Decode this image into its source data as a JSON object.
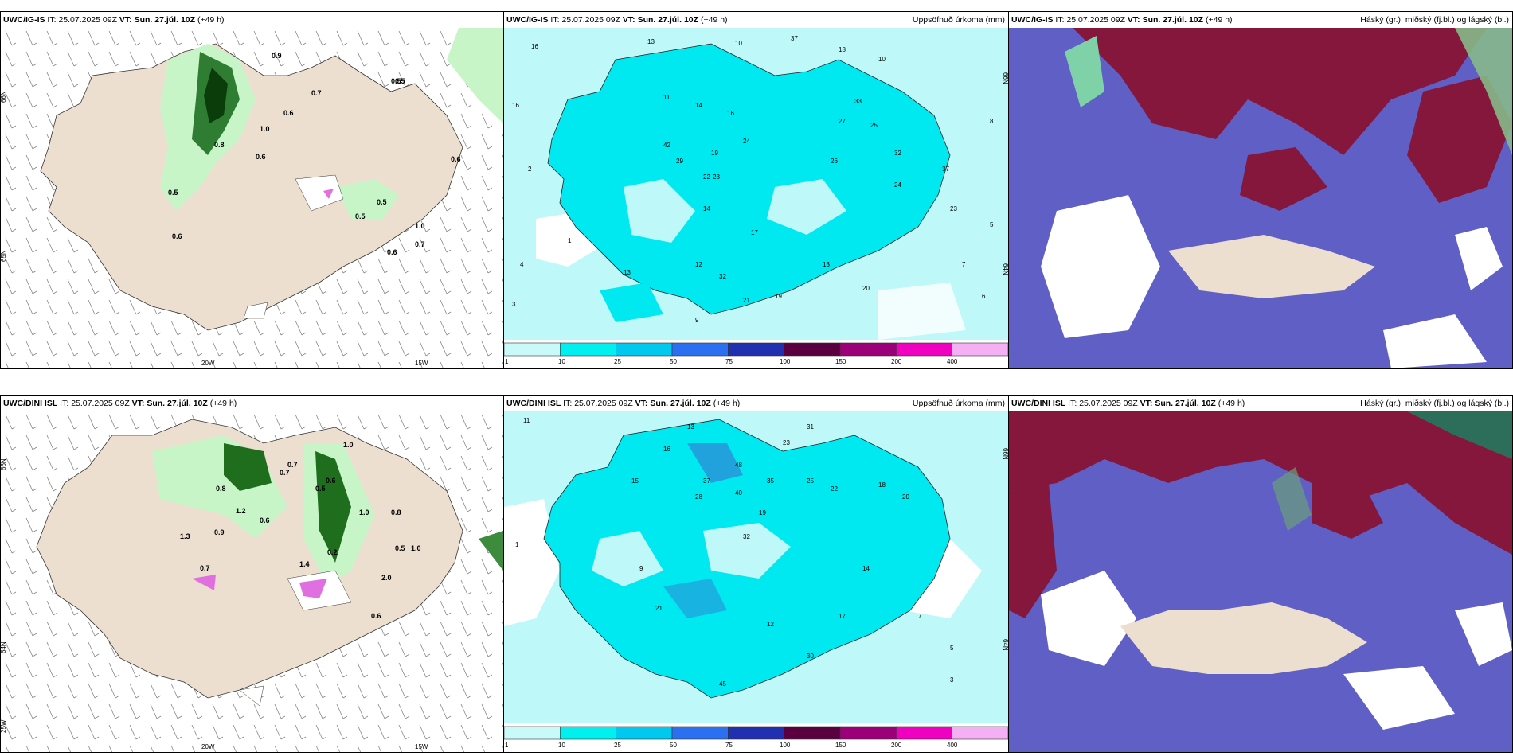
{
  "panels": [
    {
      "model": "UWC/IG-IS",
      "it_label": "IT:",
      "it_value": "25.07.2025 09Z",
      "vt_label": "VT:",
      "vt_value": "Sun. 27.júl. 10Z",
      "lead": "(+49 h)",
      "title_right": "",
      "axis_labels": [
        "66N",
        "65N",
        "20W",
        "15W"
      ],
      "values": [
        "0.9",
        "0.5",
        "0.7",
        "0.6",
        "1.0",
        "0.8",
        "0.5",
        "0.6",
        "0.6",
        "0.5",
        "0.5",
        "0.5",
        "0.7",
        "0.6",
        "1.0",
        "0.6"
      ]
    },
    {
      "model": "UWC/IG-IS",
      "it_label": "IT:",
      "it_value": "25.07.2025 09Z",
      "vt_label": "VT:",
      "vt_value": "Sun. 27.júl. 10Z",
      "lead": "(+49 h)",
      "title_right": "Uppsöfnuð úrkoma (mm)",
      "axis_labels": [
        "66N",
        "64N"
      ],
      "values": [
        "16",
        "13",
        "10",
        "37",
        "18",
        "10",
        "11",
        "14",
        "16",
        "42",
        "29",
        "19",
        "22",
        "23",
        "24",
        "26",
        "32",
        "33",
        "27",
        "25",
        "14",
        "17",
        "13",
        "24",
        "37",
        "32",
        "23",
        "21",
        "19",
        "13",
        "12",
        "20",
        "16",
        "9",
        "8",
        "7",
        "6",
        "5",
        "4",
        "3",
        "2",
        "1"
      ],
      "colorbar": [
        "1",
        "10",
        "25",
        "50",
        "75",
        "100",
        "150",
        "200",
        "400"
      ]
    },
    {
      "model": "UWC/IG-IS",
      "it_label": "IT:",
      "it_value": "25.07.2025 09Z",
      "vt_label": "VT:",
      "vt_value": "Sun. 27.júl. 10Z",
      "lead": "(+49 h)",
      "title_right": "Háský (gr.), miðský (fj.bl.) og lágský (bl.)"
    },
    {
      "model": "UWC/DINI ISL",
      "it_label": "IT:",
      "it_value": "25.07.2025 09Z",
      "vt_label": "VT:",
      "vt_value": "Sun. 27.júl. 10Z",
      "lead": "(+49 h)",
      "title_right": "",
      "axis_labels": [
        "66N",
        "64N",
        "25W",
        "20W",
        "15W"
      ],
      "values": [
        "1.0",
        "0.7",
        "0.8",
        "1.2",
        "0.9",
        "0.6",
        "0.7",
        "0.5",
        "1.0",
        "0.7",
        "0.6",
        "0.2",
        "1.3",
        "0.8",
        "0.5",
        "1.0",
        "2.0",
        "0.6",
        "1.4"
      ]
    },
    {
      "model": "UWC/DINI ISL",
      "it_label": "IT:",
      "it_value": "25.07.2025 09Z",
      "vt_label": "VT:",
      "vt_value": "Sun. 27.júl. 10Z",
      "lead": "(+49 h)",
      "title_right": "Uppsöfnuð úrkoma (mm)",
      "axis_labels": [
        "66N",
        "64N"
      ],
      "values": [
        "11",
        "13",
        "16",
        "23",
        "31",
        "48",
        "37",
        "28",
        "40",
        "35",
        "25",
        "22",
        "18",
        "20",
        "15",
        "19",
        "32",
        "14",
        "21",
        "17",
        "30",
        "45",
        "12",
        "9",
        "7",
        "5",
        "3",
        "1"
      ],
      "colorbar": [
        "1",
        "10",
        "25",
        "50",
        "75",
        "100",
        "150",
        "200",
        "400"
      ]
    },
    {
      "model": "UWC/DINI ISL",
      "it_label": "IT:",
      "it_value": "25.07.2025 09Z",
      "vt_label": "VT:",
      "vt_value": "Sun. 27.júl. 10Z",
      "lead": "(+49 h)",
      "title_right": "Háský (gr.), miðský (fj.bl.) og lágský (bl.)"
    }
  ],
  "colors": {
    "land": "#eddfcf",
    "sea": "#ffffff",
    "precip_light": "#bff8f8",
    "precip_mid": "#00e8f0",
    "precip_green_light": "#c8f5c8",
    "precip_green_dark": "#1e6e1e",
    "high_cloud": "#5f5fc6",
    "mid_cloud": "#86173c",
    "colorbar": [
      "#c8fafa",
      "#00f0f0",
      "#00c8ee",
      "#2a70f0",
      "#2030b0",
      "#5a0040",
      "#9c0078",
      "#f000c0",
      "#f5b0f5"
    ]
  }
}
